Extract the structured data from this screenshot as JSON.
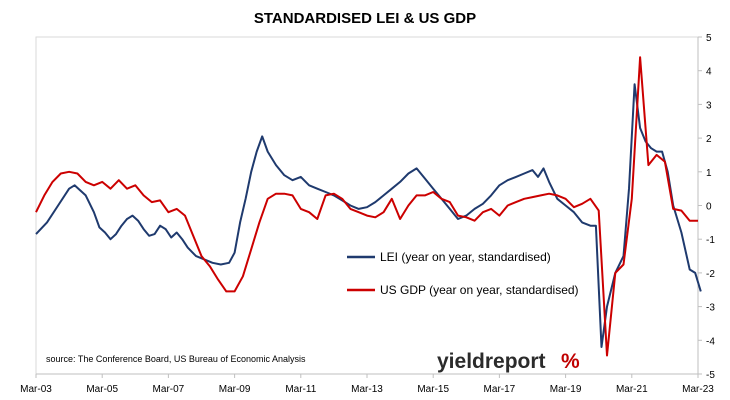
{
  "chart_data": {
    "type": "line",
    "title": "STANDARDISED LEI & US GDP",
    "xlabel": "",
    "ylabel": "",
    "x_ticks": [
      "Mar-03",
      "Mar-05",
      "Mar-07",
      "Mar-09",
      "Mar-11",
      "Mar-13",
      "Mar-15",
      "Mar-17",
      "Mar-19",
      "Mar-21",
      "Mar-23"
    ],
    "y_axis_side": "right",
    "ylim": [
      -5,
      5
    ],
    "y_ticks": [
      5,
      4,
      3,
      2,
      1,
      0,
      -1,
      -2,
      -3,
      -4,
      -5
    ],
    "grid": false,
    "legend_placement": "center-right",
    "source": "source: The Conference Board, US Bureau of Economic Analysis",
    "logo": {
      "word": "yieldreport",
      "symbol": "%"
    },
    "series": [
      {
        "name": "LEI (year on year, standardised)",
        "color": "#1f3a6e",
        "points": [
          [
            "2003-03",
            -0.85
          ],
          [
            "2003-07",
            -0.5
          ],
          [
            "2003-11",
            0.0
          ],
          [
            "2004-03",
            0.5
          ],
          [
            "2004-05",
            0.6
          ],
          [
            "2004-09",
            0.3
          ],
          [
            "2004-12",
            -0.2
          ],
          [
            "2005-02",
            -0.65
          ],
          [
            "2005-04",
            -0.8
          ],
          [
            "2005-06",
            -1.0
          ],
          [
            "2005-08",
            -0.85
          ],
          [
            "2005-10",
            -0.6
          ],
          [
            "2005-12",
            -0.4
          ],
          [
            "2006-02",
            -0.3
          ],
          [
            "2006-04",
            -0.45
          ],
          [
            "2006-06",
            -0.7
          ],
          [
            "2006-08",
            -0.9
          ],
          [
            "2006-10",
            -0.85
          ],
          [
            "2006-12",
            -0.6
          ],
          [
            "2007-02",
            -0.7
          ],
          [
            "2007-04",
            -0.95
          ],
          [
            "2007-06",
            -0.8
          ],
          [
            "2007-08",
            -1.0
          ],
          [
            "2007-10",
            -1.25
          ],
          [
            "2008-01",
            -1.5
          ],
          [
            "2008-04",
            -1.6
          ],
          [
            "2008-07",
            -1.7
          ],
          [
            "2008-10",
            -1.75
          ],
          [
            "2009-01",
            -1.7
          ],
          [
            "2009-03",
            -1.4
          ],
          [
            "2009-05",
            -0.5
          ],
          [
            "2009-07",
            0.2
          ],
          [
            "2009-09",
            1.0
          ],
          [
            "2009-11",
            1.6
          ],
          [
            "2010-01",
            2.05
          ],
          [
            "2010-03",
            1.6
          ],
          [
            "2010-06",
            1.2
          ],
          [
            "2010-09",
            0.9
          ],
          [
            "2010-12",
            0.75
          ],
          [
            "2011-03",
            0.85
          ],
          [
            "2011-06",
            0.6
          ],
          [
            "2011-09",
            0.5
          ],
          [
            "2011-12",
            0.4
          ],
          [
            "2012-03",
            0.3
          ],
          [
            "2012-06",
            0.15
          ],
          [
            "2012-09",
            0.0
          ],
          [
            "2012-12",
            -0.1
          ],
          [
            "2013-03",
            -0.05
          ],
          [
            "2013-06",
            0.1
          ],
          [
            "2013-09",
            0.3
          ],
          [
            "2013-12",
            0.5
          ],
          [
            "2014-03",
            0.7
          ],
          [
            "2014-06",
            0.95
          ],
          [
            "2014-09",
            1.1
          ],
          [
            "2014-12",
            0.8
          ],
          [
            "2015-03",
            0.5
          ],
          [
            "2015-06",
            0.2
          ],
          [
            "2015-09",
            -0.1
          ],
          [
            "2015-12",
            -0.4
          ],
          [
            "2016-03",
            -0.3
          ],
          [
            "2016-06",
            -0.1
          ],
          [
            "2016-09",
            0.05
          ],
          [
            "2016-12",
            0.3
          ],
          [
            "2017-03",
            0.6
          ],
          [
            "2017-06",
            0.75
          ],
          [
            "2017-09",
            0.85
          ],
          [
            "2017-12",
            0.95
          ],
          [
            "2018-03",
            1.05
          ],
          [
            "2018-05",
            0.85
          ],
          [
            "2018-07",
            1.1
          ],
          [
            "2018-09",
            0.7
          ],
          [
            "2018-12",
            0.2
          ],
          [
            "2019-03",
            0.0
          ],
          [
            "2019-06",
            -0.2
          ],
          [
            "2019-09",
            -0.5
          ],
          [
            "2019-12",
            -0.6
          ],
          [
            "2020-02",
            -0.6
          ],
          [
            "2020-04",
            -4.2
          ],
          [
            "2020-06",
            -3.0
          ],
          [
            "2020-09",
            -2.0
          ],
          [
            "2020-12",
            -1.5
          ],
          [
            "2021-02",
            0.5
          ],
          [
            "2021-04",
            3.6
          ],
          [
            "2021-06",
            2.3
          ],
          [
            "2021-08",
            1.9
          ],
          [
            "2021-10",
            1.7
          ],
          [
            "2021-12",
            1.6
          ],
          [
            "2022-02",
            1.6
          ],
          [
            "2022-04",
            1.0
          ],
          [
            "2022-06",
            0.0
          ],
          [
            "2022-09",
            -0.8
          ],
          [
            "2022-12",
            -1.9
          ],
          [
            "2023-02",
            -2.0
          ],
          [
            "2023-04",
            -2.55
          ]
        ]
      },
      {
        "name": "US GDP (year on year, standardised)",
        "color": "#cc0000",
        "points": [
          [
            "2003-03",
            -0.2
          ],
          [
            "2003-06",
            0.3
          ],
          [
            "2003-09",
            0.7
          ],
          [
            "2003-12",
            0.95
          ],
          [
            "2004-03",
            1.0
          ],
          [
            "2004-06",
            0.95
          ],
          [
            "2004-09",
            0.7
          ],
          [
            "2004-12",
            0.6
          ],
          [
            "2005-03",
            0.7
          ],
          [
            "2005-06",
            0.5
          ],
          [
            "2005-09",
            0.75
          ],
          [
            "2005-12",
            0.5
          ],
          [
            "2006-03",
            0.6
          ],
          [
            "2006-06",
            0.3
          ],
          [
            "2006-09",
            0.1
          ],
          [
            "2006-12",
            0.15
          ],
          [
            "2007-03",
            -0.2
          ],
          [
            "2007-06",
            -0.1
          ],
          [
            "2007-09",
            -0.3
          ],
          [
            "2007-12",
            -0.9
          ],
          [
            "2008-03",
            -1.5
          ],
          [
            "2008-06",
            -1.8
          ],
          [
            "2008-09",
            -2.2
          ],
          [
            "2008-12",
            -2.55
          ],
          [
            "2009-03",
            -2.55
          ],
          [
            "2009-06",
            -2.1
          ],
          [
            "2009-09",
            -1.3
          ],
          [
            "2009-12",
            -0.5
          ],
          [
            "2010-03",
            0.2
          ],
          [
            "2010-06",
            0.35
          ],
          [
            "2010-09",
            0.35
          ],
          [
            "2010-12",
            0.3
          ],
          [
            "2011-03",
            -0.1
          ],
          [
            "2011-06",
            -0.2
          ],
          [
            "2011-09",
            -0.4
          ],
          [
            "2011-12",
            0.3
          ],
          [
            "2012-03",
            0.35
          ],
          [
            "2012-06",
            0.2
          ],
          [
            "2012-09",
            -0.1
          ],
          [
            "2012-12",
            -0.2
          ],
          [
            "2013-03",
            -0.3
          ],
          [
            "2013-06",
            -0.35
          ],
          [
            "2013-09",
            -0.2
          ],
          [
            "2013-12",
            0.2
          ],
          [
            "2014-03",
            -0.4
          ],
          [
            "2014-06",
            0.0
          ],
          [
            "2014-09",
            0.3
          ],
          [
            "2014-12",
            0.3
          ],
          [
            "2015-03",
            0.4
          ],
          [
            "2015-06",
            0.2
          ],
          [
            "2015-09",
            0.1
          ],
          [
            "2015-12",
            -0.3
          ],
          [
            "2016-03",
            -0.35
          ],
          [
            "2016-06",
            -0.45
          ],
          [
            "2016-09",
            -0.2
          ],
          [
            "2016-12",
            -0.1
          ],
          [
            "2017-03",
            -0.3
          ],
          [
            "2017-06",
            0.0
          ],
          [
            "2017-09",
            0.1
          ],
          [
            "2017-12",
            0.2
          ],
          [
            "2018-03",
            0.25
          ],
          [
            "2018-06",
            0.3
          ],
          [
            "2018-09",
            0.35
          ],
          [
            "2018-12",
            0.3
          ],
          [
            "2019-03",
            0.2
          ],
          [
            "2019-06",
            -0.05
          ],
          [
            "2019-09",
            0.05
          ],
          [
            "2019-12",
            0.2
          ],
          [
            "2020-03",
            -0.15
          ],
          [
            "2020-06",
            -4.45
          ],
          [
            "2020-09",
            -2.0
          ],
          [
            "2020-12",
            -1.75
          ],
          [
            "2021-03",
            0.2
          ],
          [
            "2021-06",
            4.4
          ],
          [
            "2021-09",
            1.2
          ],
          [
            "2021-12",
            1.5
          ],
          [
            "2022-03",
            1.3
          ],
          [
            "2022-06",
            -0.1
          ],
          [
            "2022-09",
            -0.15
          ],
          [
            "2022-12",
            -0.45
          ],
          [
            "2023-03",
            -0.45
          ]
        ]
      }
    ]
  }
}
